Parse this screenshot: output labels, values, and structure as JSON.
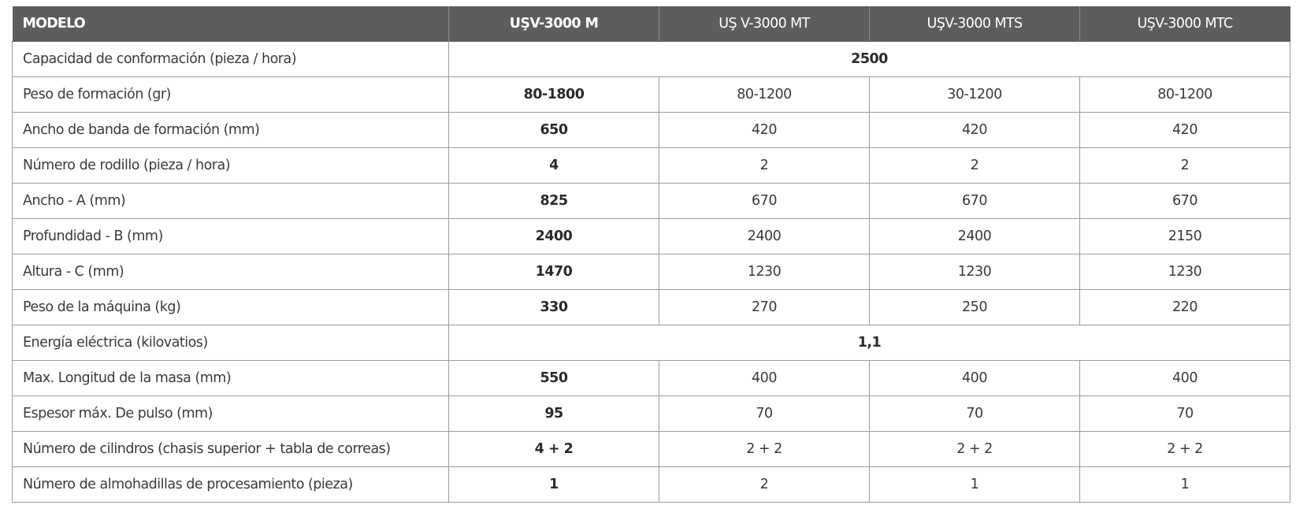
{
  "header": {
    "label": "MODELO",
    "models": [
      "UŞV-3000 M",
      "UŞ V-3000 MT",
      "UŞV-3000 MTS",
      "UŞV-3000 MTC"
    ]
  },
  "rows": [
    {
      "label": "Capacidad de conformación (pieza / hora)",
      "merged": "2500"
    },
    {
      "label": "Peso de formación (gr)",
      "values": [
        "80-1800",
        "80-1200",
        "30-1200",
        "80-1200"
      ]
    },
    {
      "label": "Ancho de banda de formación (mm)",
      "values": [
        "650",
        "420",
        "420",
        "420"
      ]
    },
    {
      "label": "Número de rodillo (pieza / hora)",
      "values": [
        "4",
        "2",
        "2",
        "2"
      ]
    },
    {
      "label": "Ancho - A (mm)",
      "values": [
        "825",
        "670",
        "670",
        "670"
      ]
    },
    {
      "label": "Profundidad - B (mm)",
      "values": [
        "2400",
        "2400",
        "2400",
        "2150"
      ]
    },
    {
      "label": "Altura - C (mm)",
      "values": [
        "1470",
        "1230",
        "1230",
        "1230"
      ]
    },
    {
      "label": "Peso de la máquina (kg)",
      "values": [
        "330",
        "270",
        "250",
        "220"
      ]
    },
    {
      "label": "Energía eléctrica (kilovatios)",
      "merged": "1,1"
    },
    {
      "label": "Max. Longitud de la masa (mm)",
      "values": [
        "550",
        "400",
        "400",
        "400"
      ]
    },
    {
      "label": "Espesor máx. De pulso (mm)",
      "values": [
        "95",
        "70",
        "70",
        "70"
      ]
    },
    {
      "label": "Número de cilindros (chasis superior + tabla de correas)",
      "values": [
        "4 + 2",
        "2 + 2",
        "2 + 2",
        "2 + 2"
      ]
    },
    {
      "label": "Número de almohadillas de procesamiento (pieza)",
      "values": [
        "1",
        "2",
        "1",
        "1"
      ]
    }
  ],
  "colors": {
    "header_bg": "#5d5d5d",
    "header_text": "#ffffff",
    "border": "#9c9c9c",
    "text": "#3a3a3a"
  }
}
